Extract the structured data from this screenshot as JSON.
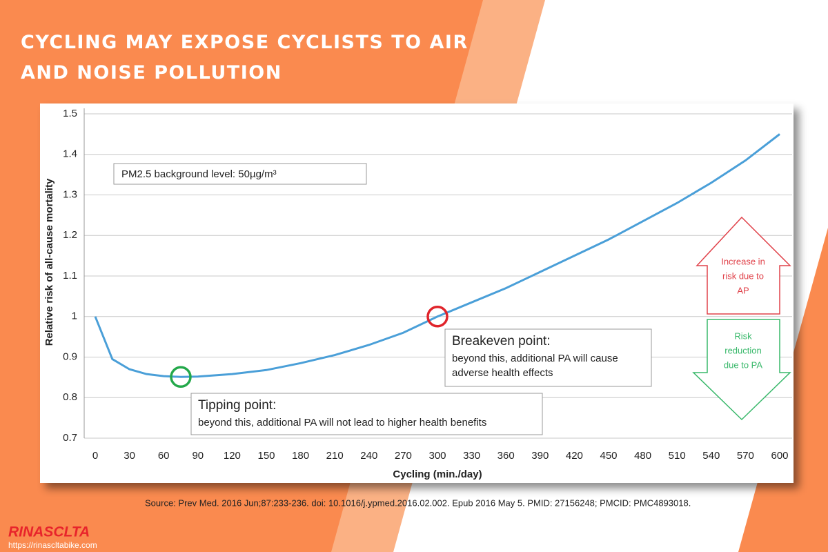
{
  "header": {
    "title": "CYCLING MAY EXPOSE CYCLISTS TO AIR AND NOISE POLLUTION"
  },
  "chart_data": {
    "type": "line",
    "x_label": "Cycling (min./day)",
    "y_label": "Relative risk of all-cause mortality",
    "x": [
      0,
      15,
      30,
      45,
      60,
      75,
      90,
      120,
      150,
      180,
      210,
      240,
      270,
      300,
      330,
      360,
      390,
      420,
      450,
      480,
      510,
      540,
      570,
      600
    ],
    "values": [
      1.0,
      0.895,
      0.87,
      0.858,
      0.853,
      0.851,
      0.852,
      0.858,
      0.868,
      0.885,
      0.905,
      0.93,
      0.96,
      1.0,
      1.035,
      1.07,
      1.11,
      1.15,
      1.19,
      1.235,
      1.28,
      1.33,
      1.385,
      1.45
    ],
    "color": "#4a9fd8",
    "xlim": [
      0,
      600
    ],
    "xticks": [
      0,
      30,
      60,
      90,
      120,
      150,
      180,
      210,
      240,
      270,
      300,
      330,
      360,
      390,
      420,
      450,
      480,
      510,
      540,
      570,
      600
    ],
    "ylim": [
      0.7,
      1.5
    ],
    "yticks": [
      0.7,
      0.8,
      0.9,
      1,
      1.1,
      1.2,
      1.3,
      1.4,
      1.5
    ],
    "grid": true,
    "note": "PM2.5 background level: 50µg/m³",
    "annotations": [
      {
        "title": "Tipping point:",
        "lines": [
          "beyond this, additional PA will not lead to higher health benefits"
        ],
        "x": 75,
        "y": 0.851,
        "color": "#23a84a"
      },
      {
        "title": "Breakeven point:",
        "lines": [
          "beyond this, additional PA will cause",
          "adverse health effects"
        ],
        "x": 300,
        "y": 1.0,
        "color": "#e0242b"
      }
    ],
    "arrows": [
      {
        "lines": [
          "Increase in",
          "risk due to",
          "AP"
        ],
        "color": "#e0424a"
      },
      {
        "lines": [
          "Risk",
          "reduction",
          "due to PA"
        ],
        "color": "#38b86a"
      }
    ]
  },
  "source": "Source: Prev Med. 2016 Jun;87:233-236. doi: 10.1016/j.ypmed.2016.02.002. Epub 2016 May 5. PMID: 27156248; PMCID: PMC4893018.",
  "brand": {
    "name": "RINASCLTA",
    "url": "https://rinascltabike.com"
  }
}
